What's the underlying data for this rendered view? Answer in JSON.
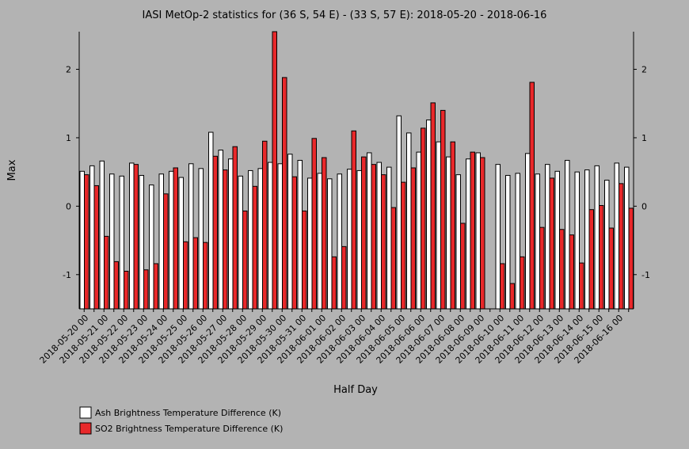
{
  "chart_data": {
    "type": "bar",
    "title": "IASI MetOp-2 statistics for (36 S, 54 E) - (33 S, 57 E): 2018-05-20 - 2018-06-16",
    "xlabel": "Half Day",
    "ylabel": "Max",
    "ylim": [
      -1.5,
      2.55
    ],
    "yticks": [
      -1,
      0,
      1,
      2
    ],
    "grid": false,
    "legend_position": "bottom-left",
    "colors": {
      "background": "#b3b3b3",
      "ash": "#ffffff",
      "so2": "#e8282a",
      "axis": "#000000"
    },
    "categories": [
      "2018-05-20 00",
      "",
      "2018-05-21 00",
      "",
      "2018-05-22 00",
      "",
      "2018-05-23 00",
      "",
      "2018-05-24 00",
      "",
      "2018-05-25 00",
      "",
      "2018-05-26 00",
      "",
      "2018-05-27 00",
      "",
      "2018-05-28 00",
      "",
      "2018-05-29 00",
      "",
      "2018-05-30 00",
      "",
      "2018-05-31 00",
      "",
      "2018-06-01 00",
      "",
      "2018-06-02 00",
      "",
      "2018-06-03 00",
      "",
      "2018-06-04 00",
      "",
      "2018-06-05 00",
      "",
      "2018-06-06 00",
      "",
      "2018-06-07 00",
      "",
      "2018-06-08 00",
      "",
      "2018-06-09 00",
      "",
      "2018-06-10 00",
      "",
      "2018-06-11 00",
      "",
      "2018-06-12 00",
      "",
      "2018-06-13 00",
      "",
      "2018-06-14 00",
      "",
      "2018-06-15 00",
      "",
      "2018-06-16 00",
      ""
    ],
    "series": [
      {
        "name": "Ash Brightness Temperature Difference (K)",
        "values": [
          0.51,
          0.59,
          0.66,
          0.47,
          0.44,
          0.63,
          0.45,
          0.31,
          0.47,
          0.51,
          0.42,
          0.62,
          0.55,
          1.08,
          0.82,
          0.69,
          0.44,
          0.52,
          0.55,
          0.64,
          0.62,
          0.76,
          0.67,
          0.41,
          0.48,
          0.4,
          0.47,
          0.54,
          0.52,
          0.78,
          0.64,
          0.57,
          1.32,
          1.07,
          0.79,
          1.26,
          0.94,
          0.72,
          0.46,
          0.69,
          0.78,
          null,
          0.61,
          0.45,
          0.48,
          0.77,
          0.47,
          0.61,
          0.51,
          0.67,
          0.5,
          0.53,
          0.59,
          0.38,
          0.63,
          0.57
        ]
      },
      {
        "name": "SO2 Brightness Temperature Difference (K)",
        "values": [
          0.46,
          0.3,
          -0.44,
          -0.81,
          -0.95,
          0.61,
          -0.93,
          -0.84,
          0.18,
          0.56,
          -0.52,
          -0.46,
          -0.53,
          0.73,
          0.53,
          0.87,
          -0.07,
          0.29,
          0.95,
          2.55,
          1.88,
          0.43,
          -0.07,
          0.99,
          0.71,
          -0.74,
          -0.59,
          1.1,
          0.72,
          0.61,
          0.46,
          -0.02,
          0.35,
          0.56,
          1.14,
          1.51,
          1.4,
          0.94,
          -0.25,
          0.79,
          0.71,
          null,
          -0.84,
          -1.13,
          -0.74,
          1.81,
          -0.31,
          0.41,
          -0.34,
          -0.42,
          -0.83,
          -0.05,
          0.01,
          -0.32,
          0.33,
          -0.03
        ]
      }
    ]
  }
}
